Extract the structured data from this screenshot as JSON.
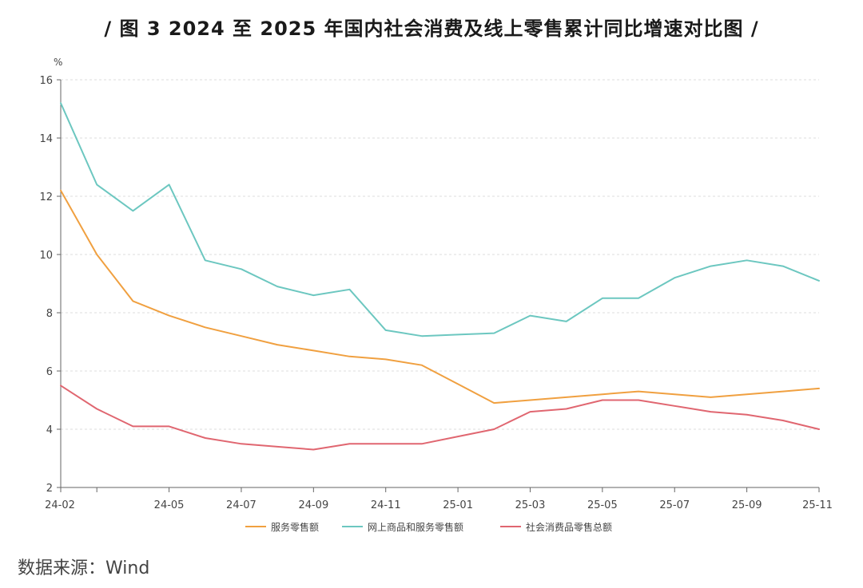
{
  "title": "/ 图 3 2024 至 2025 年国内社会消费及线上零售累计同比增速对比图 /",
  "source": "数据来源：Wind",
  "colors": {
    "services": "#F0A040",
    "online": "#6CC7C0",
    "total": "#E06670",
    "axis": "#666666",
    "grid": "#dddddd"
  },
  "chart_data": {
    "type": "line",
    "ylabel": "%",
    "ylim": [
      2,
      16
    ],
    "yticks": [
      2,
      4,
      6,
      8,
      10,
      12,
      14,
      16
    ],
    "x": [
      "24-02",
      "24-03",
      "24-04",
      "24-05",
      "24-06",
      "24-07",
      "24-08",
      "24-09",
      "24-10",
      "24-11",
      "24-12",
      "25-01",
      "25-02",
      "25-03",
      "25-04",
      "25-05",
      "25-06",
      "25-07",
      "25-08",
      "25-09",
      "25-10",
      "25-11"
    ],
    "xtick_labels": [
      "24-02",
      "24-05",
      "24-07",
      "24-09",
      "24-11",
      "25-01",
      "25-03",
      "25-05",
      "25-07",
      "25-09",
      "25-11"
    ],
    "xtick_indices": [
      0,
      3,
      5,
      7,
      9,
      11,
      13,
      15,
      17,
      19,
      21
    ],
    "grid": true,
    "legend_position": "bottom",
    "series": [
      {
        "name": "服务零售额",
        "color_key": "services",
        "values": [
          12.2,
          10.0,
          8.4,
          7.9,
          7.5,
          7.2,
          6.9,
          6.7,
          6.5,
          6.4,
          6.2,
          5.55,
          4.9,
          5.0,
          5.1,
          5.2,
          5.3,
          5.2,
          5.1,
          5.2,
          5.3,
          5.4
        ]
      },
      {
        "name": "网上商品和服务零售额",
        "color_key": "online",
        "values": [
          15.2,
          12.4,
          11.5,
          12.4,
          9.8,
          9.5,
          8.9,
          8.6,
          8.8,
          7.4,
          7.2,
          7.25,
          7.3,
          7.9,
          7.7,
          8.5,
          8.5,
          9.2,
          9.6,
          9.8,
          9.6,
          9.1
        ]
      },
      {
        "name": "社会消费品零售总额",
        "color_key": "total",
        "values": [
          5.5,
          4.7,
          4.1,
          4.1,
          3.7,
          3.5,
          3.4,
          3.3,
          3.5,
          3.5,
          3.5,
          3.75,
          4.0,
          4.6,
          4.7,
          5.0,
          5.0,
          4.8,
          4.6,
          4.5,
          4.3,
          4.0
        ]
      }
    ]
  }
}
